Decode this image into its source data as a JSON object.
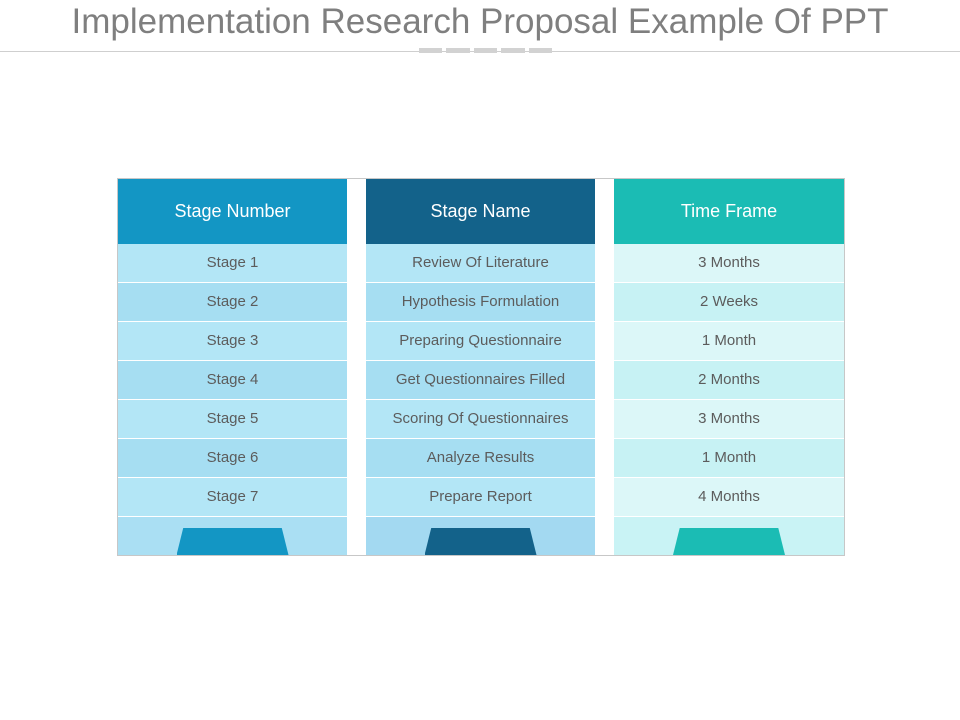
{
  "slide": {
    "title": "Implementation Research Proposal Example Of PPT"
  },
  "colors": {
    "stage_number_header": "#1396c4",
    "stage_name_header": "#13628a",
    "time_frame_header": "#1bbcb4",
    "light_blue_row": "#b3e6f6",
    "light_teal_row": "#dcf7f8",
    "title_text": "#7f7f7f"
  },
  "table": {
    "headers": [
      "Stage Number",
      "Stage Name",
      "Time Frame"
    ],
    "rows": [
      [
        "Stage 1",
        "Review Of Literature",
        "3 Months"
      ],
      [
        "Stage 2",
        "Hypothesis Formulation",
        "2 Weeks"
      ],
      [
        "Stage 3",
        "Preparing Questionnaire",
        "1 Month"
      ],
      [
        "Stage 4",
        "Get Questionnaires Filled",
        "2 Months"
      ],
      [
        "Stage 5",
        "Scoring Of Questionnaires",
        "3 Months"
      ],
      [
        "Stage 6",
        "Analyze Results",
        "1 Month"
      ],
      [
        "Stage 7",
        "Prepare Report",
        "4 Months"
      ]
    ]
  }
}
